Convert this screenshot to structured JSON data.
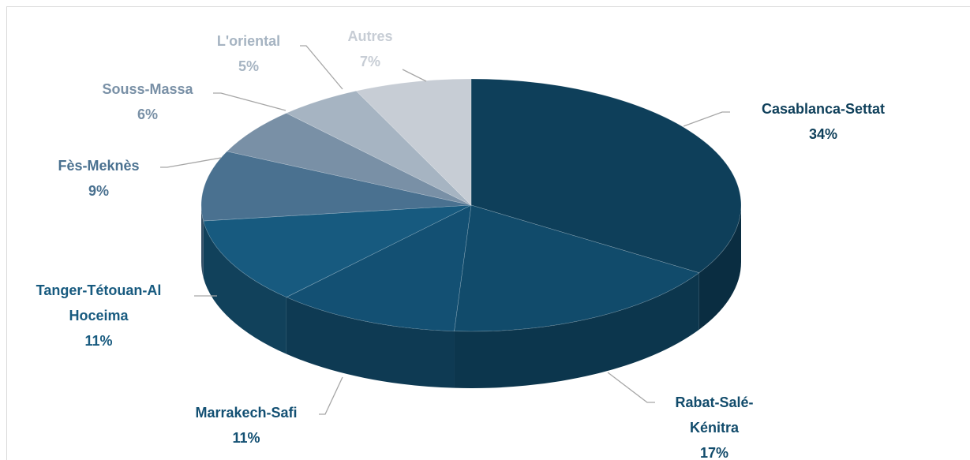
{
  "chart_data": {
    "type": "pie",
    "categories": [
      "Casablanca-Settat",
      "Rabat-Salé-Kénitra",
      "Marrakech-Safi",
      "Tanger-Tétouan-Al Hoceima",
      "Fès-Meknès",
      "Souss-Massa",
      "L'oriental",
      "Autres"
    ],
    "values": [
      34,
      17,
      11,
      11,
      9,
      6,
      5,
      7
    ],
    "value_labels": [
      "34%",
      "17%",
      "11%",
      "11%",
      "9%",
      "6%",
      "5%",
      "7%"
    ],
    "colors": [
      "#0e3f5a",
      "#114b6b",
      "#135073",
      "#175a7f",
      "#4a7190",
      "#7990a6",
      "#a6b4c2",
      "#c7cdd5"
    ]
  }
}
